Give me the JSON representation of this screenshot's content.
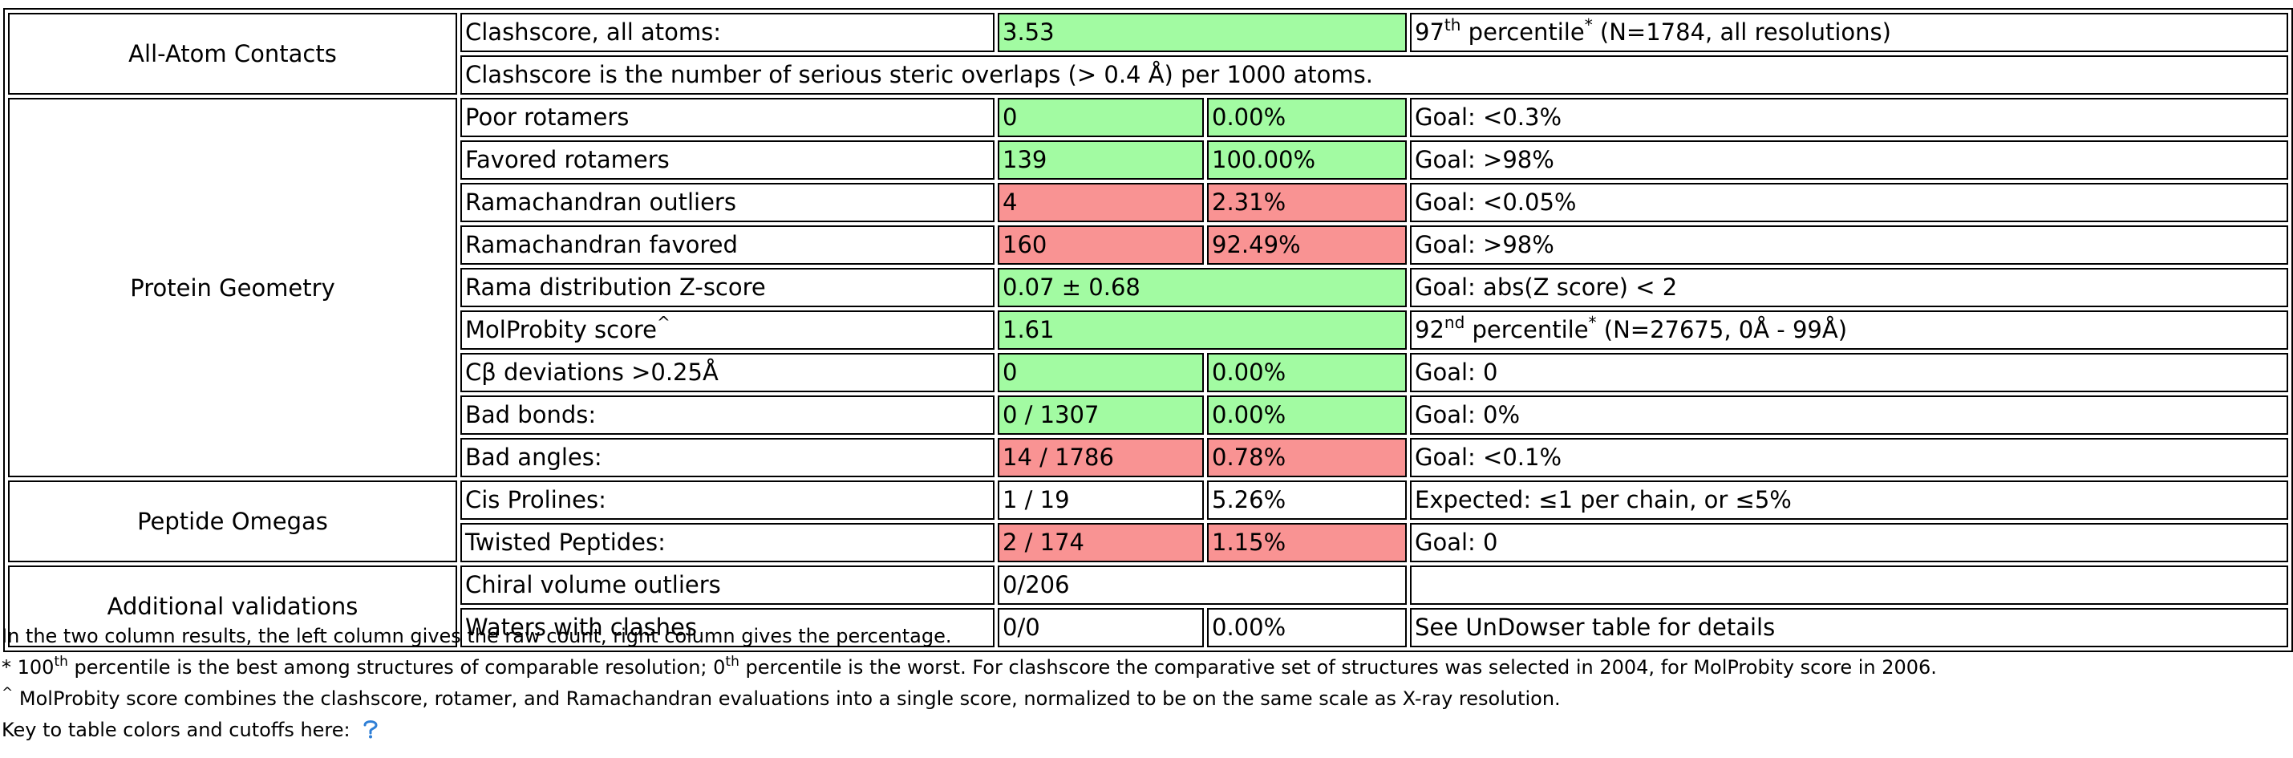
{
  "colors": {
    "pass": "#a2fba2",
    "fail": "#f99393"
  },
  "contacts": {
    "category": "All-Atom Contacts",
    "clashscore": {
      "label": "Clashscore, all atoms:",
      "value": "3.53",
      "pct_num": "97",
      "pct_sup": "th",
      "pct_word": " percentile",
      "pct_star": "*",
      "pct_rest": " (N=1784, all resolutions)"
    },
    "note": "Clashscore is the number of serious steric overlaps (> 0.4 Å) per 1000 atoms."
  },
  "geometry": {
    "category": "Protein Geometry",
    "poor_rotamers": {
      "label": "Poor rotamers",
      "count": "0",
      "percent": "0.00%",
      "goal": "Goal: <0.3%"
    },
    "favored_rotamers": {
      "label": "Favored rotamers",
      "count": "139",
      "percent": "100.00%",
      "goal": "Goal: >98%"
    },
    "rama_outliers": {
      "label": "Ramachandran outliers",
      "count": "4",
      "percent": "2.31%",
      "goal": "Goal: <0.05%"
    },
    "rama_favored": {
      "label": "Ramachandran favored",
      "count": "160",
      "percent": "92.49%",
      "goal": "Goal: >98%"
    },
    "rama_z": {
      "label": "Rama distribution Z-score",
      "value": "0.07 ± 0.68",
      "goal": "Goal: abs(Z score) < 2"
    },
    "molprobity": {
      "label": "MolProbity score",
      "label_sup": "^",
      "value": "1.61",
      "pct_num": "92",
      "pct_sup": "nd",
      "pct_word": " percentile",
      "pct_star": "*",
      "pct_rest": " (N=27675, 0Å - 99Å)"
    },
    "cbeta": {
      "label": "Cβ deviations >0.25Å",
      "count": "0",
      "percent": "0.00%",
      "goal": "Goal: 0"
    },
    "bad_bonds": {
      "label": "Bad bonds:",
      "count": "0 / 1307",
      "percent": "0.00%",
      "goal": "Goal: 0%"
    },
    "bad_angles": {
      "label": "Bad angles:",
      "count": "14 / 1786",
      "percent": "0.78%",
      "goal": "Goal: <0.1%"
    }
  },
  "omegas": {
    "category": "Peptide Omegas",
    "cis_prolines": {
      "label": "Cis Prolines:",
      "count": "1 / 19",
      "percent": "5.26%",
      "goal": "Expected: ≤1 per chain, or ≤5%"
    },
    "twisted": {
      "label": "Twisted Peptides:",
      "count": "2 / 174",
      "percent": "1.15%",
      "goal": "Goal: 0"
    }
  },
  "additional": {
    "category": "Additional validations",
    "chiral": {
      "label": "Chiral volume outliers",
      "value": "0/206",
      "goal": ""
    },
    "waters": {
      "label": "Waters with clashes",
      "count": "0/0",
      "percent": "0.00%",
      "goal": "See UnDowser table for details"
    }
  },
  "footnotes": {
    "line1": "In the two column results, the left column gives the raw count, right column gives the percentage.",
    "line2": {
      "star": "* ",
      "n1": "100",
      "s1": "th",
      "mid": " percentile is the best among structures of comparable resolution; ",
      "n2": "0",
      "s2": "th",
      "rest": " percentile is the worst. For clashscore the comparative set of structures was selected in 2004, for MolProbity score in 2006."
    },
    "line3": {
      "caret": "^",
      "text": " MolProbity score combines the clashscore, rotamer, and Ramachandran evaluations into a single score, normalized to be on the same scale as X-ray resolution."
    },
    "line4": "Key to table colors and cutoffs here: ",
    "help_icon": "help-icon"
  }
}
